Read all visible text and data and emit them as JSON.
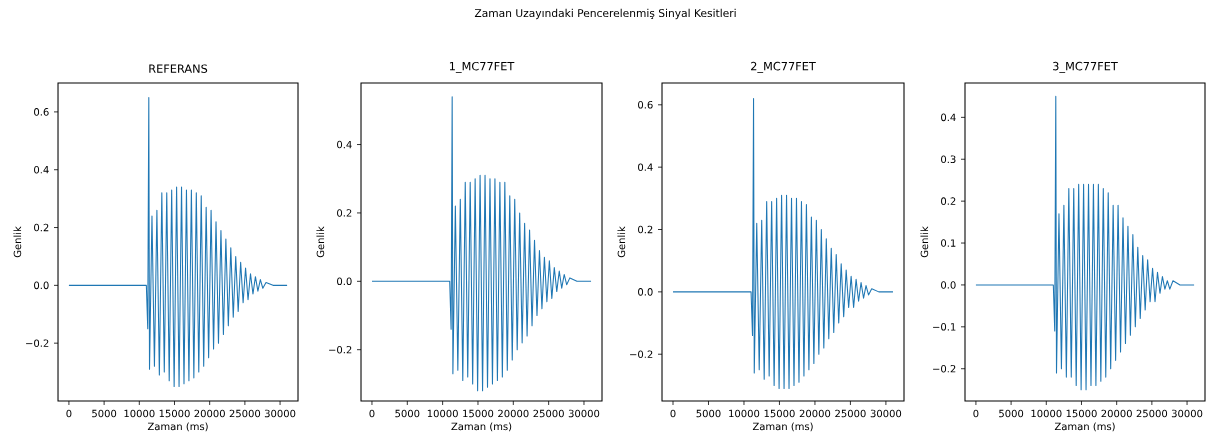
{
  "chart_data": [
    {
      "type": "line",
      "title": "REFERANS",
      "xlabel": "Zaman (ms)",
      "ylabel": "Genlik",
      "annotations": [
        "Zaman Uzayındaki Pencerelenmiş Sinyal Kesitleri"
      ],
      "color": "#1f77b4",
      "x": [
        0,
        11000,
        11200,
        11350,
        11450,
        11800,
        12150,
        12500,
        12850,
        13200,
        13550,
        13900,
        14250,
        14600,
        14950,
        15300,
        15650,
        16000,
        16350,
        16700,
        17050,
        17400,
        17750,
        18100,
        18450,
        18800,
        19150,
        19500,
        19850,
        20200,
        20550,
        20900,
        21250,
        21600,
        21950,
        22300,
        22650,
        23000,
        23350,
        23700,
        24050,
        24400,
        24750,
        25100,
        25450,
        25800,
        26150,
        26500,
        26850,
        27200,
        27550,
        28000,
        29000,
        31000
      ],
      "values": [
        0,
        0,
        -0.15,
        0.65,
        -0.29,
        0.24,
        -0.28,
        0.26,
        -0.31,
        0.32,
        -0.3,
        0.32,
        -0.33,
        0.33,
        -0.35,
        0.34,
        -0.35,
        0.34,
        -0.34,
        0.33,
        -0.33,
        0.33,
        -0.32,
        0.32,
        -0.3,
        0.31,
        -0.28,
        0.27,
        -0.25,
        0.26,
        -0.22,
        0.22,
        -0.2,
        0.19,
        -0.17,
        0.16,
        -0.14,
        0.13,
        -0.11,
        0.1,
        -0.09,
        0.08,
        -0.06,
        0.06,
        -0.05,
        0.04,
        -0.03,
        0.03,
        -0.02,
        0.02,
        -0.01,
        0.01,
        0,
        0
      ],
      "xlim": [
        -1550,
        32550
      ],
      "ylim": [
        -0.4,
        0.7
      ],
      "xticks": [
        0,
        5000,
        10000,
        15000,
        20000,
        25000,
        30000
      ],
      "yticks": [
        {
          "value": -0.2,
          "label": "−0.2"
        },
        {
          "value": 0,
          "label": "0.0"
        },
        0.2,
        0.4,
        0.6
      ]
    },
    {
      "type": "line",
      "title": "1_MC77FET",
      "xlabel": "Zaman (ms)",
      "ylabel": "Genlik",
      "color": "#1f77b4",
      "x": [
        0,
        11000,
        11200,
        11350,
        11450,
        11800,
        12150,
        12500,
        12850,
        13200,
        13550,
        13900,
        14250,
        14600,
        14950,
        15300,
        15650,
        16000,
        16350,
        16700,
        17050,
        17400,
        17750,
        18100,
        18450,
        18800,
        19150,
        19500,
        19850,
        20200,
        20550,
        20900,
        21250,
        21600,
        21950,
        22300,
        22650,
        23000,
        23350,
        23700,
        24050,
        24400,
        24750,
        25100,
        25450,
        25800,
        26150,
        26500,
        26850,
        27200,
        27550,
        28000,
        29000,
        31000
      ],
      "values": [
        0,
        0,
        -0.14,
        0.54,
        -0.27,
        0.22,
        -0.26,
        0.24,
        -0.29,
        0.29,
        -0.28,
        0.29,
        -0.3,
        0.3,
        -0.32,
        0.31,
        -0.32,
        0.31,
        -0.31,
        0.3,
        -0.3,
        0.3,
        -0.29,
        0.29,
        -0.28,
        0.29,
        -0.26,
        0.25,
        -0.23,
        0.24,
        -0.2,
        0.2,
        -0.18,
        0.17,
        -0.16,
        0.15,
        -0.13,
        0.12,
        -0.1,
        0.09,
        -0.08,
        0.07,
        -0.06,
        0.06,
        -0.05,
        0.04,
        -0.03,
        0.03,
        -0.02,
        0.02,
        -0.01,
        0.01,
        0,
        0
      ],
      "xlim": [
        -1550,
        32550
      ],
      "ylim": [
        -0.35,
        0.58
      ],
      "xticks": [
        0,
        5000,
        10000,
        15000,
        20000,
        25000,
        30000
      ],
      "yticks": [
        {
          "value": -0.2,
          "label": "−0.2"
        },
        {
          "value": 0,
          "label": "0.0"
        },
        0.2,
        0.4
      ]
    },
    {
      "type": "line",
      "title": "2_MC77FET",
      "xlabel": "Zaman (ms)",
      "ylabel": "Genlik",
      "color": "#1f77b4",
      "x": [
        0,
        11000,
        11200,
        11350,
        11450,
        11800,
        12150,
        12500,
        12850,
        13200,
        13550,
        13900,
        14250,
        14600,
        14950,
        15300,
        15650,
        16000,
        16350,
        16700,
        17050,
        17400,
        17750,
        18100,
        18450,
        18800,
        19150,
        19500,
        19850,
        20200,
        20550,
        20900,
        21250,
        21600,
        21950,
        22300,
        22650,
        23000,
        23350,
        23700,
        24050,
        24400,
        24750,
        25100,
        25450,
        25800,
        26150,
        26500,
        26850,
        27200,
        27550,
        28000,
        29000,
        31000
      ],
      "values": [
        0,
        0,
        -0.14,
        0.62,
        -0.26,
        0.22,
        -0.25,
        0.23,
        -0.28,
        0.29,
        -0.27,
        0.29,
        -0.3,
        0.3,
        -0.31,
        0.31,
        -0.31,
        0.31,
        -0.31,
        0.3,
        -0.3,
        0.3,
        -0.29,
        0.29,
        -0.27,
        0.28,
        -0.25,
        0.24,
        -0.23,
        0.23,
        -0.2,
        0.2,
        -0.18,
        0.17,
        -0.15,
        0.14,
        -0.13,
        0.12,
        -0.1,
        0.09,
        -0.08,
        0.07,
        -0.05,
        0.05,
        -0.05,
        0.04,
        -0.03,
        0.03,
        -0.02,
        0.02,
        -0.01,
        0.01,
        0,
        0
      ],
      "xlim": [
        -1550,
        32550
      ],
      "ylim": [
        -0.35,
        0.67
      ],
      "xticks": [
        0,
        5000,
        10000,
        15000,
        20000,
        25000,
        30000
      ],
      "yticks": [
        {
          "value": -0.2,
          "label": "−0.2"
        },
        {
          "value": 0,
          "label": "0.0"
        },
        0.2,
        0.4,
        0.6
      ]
    },
    {
      "type": "line",
      "title": "3_MC77FET",
      "xlabel": "Zaman (ms)",
      "ylabel": "Genlik",
      "color": "#1f77b4",
      "x": [
        0,
        11000,
        11200,
        11350,
        11450,
        11800,
        12150,
        12500,
        12850,
        13200,
        13550,
        13900,
        14250,
        14600,
        14950,
        15300,
        15650,
        16000,
        16350,
        16700,
        17050,
        17400,
        17750,
        18100,
        18450,
        18800,
        19150,
        19500,
        19850,
        20200,
        20550,
        20900,
        21250,
        21600,
        21950,
        22300,
        22650,
        23000,
        23350,
        23700,
        24050,
        24400,
        24750,
        25100,
        25450,
        25800,
        26150,
        26500,
        26850,
        27200,
        27550,
        28000,
        29000,
        31000
      ],
      "values": [
        0,
        0,
        -0.11,
        0.45,
        -0.21,
        0.17,
        -0.2,
        0.19,
        -0.22,
        0.23,
        -0.22,
        0.23,
        -0.24,
        0.24,
        -0.25,
        0.24,
        -0.25,
        0.24,
        -0.24,
        0.24,
        -0.24,
        0.24,
        -0.23,
        0.23,
        -0.22,
        0.22,
        -0.2,
        0.19,
        -0.18,
        0.19,
        -0.16,
        0.16,
        -0.14,
        0.14,
        -0.12,
        0.12,
        -0.1,
        0.09,
        -0.08,
        0.07,
        -0.06,
        0.06,
        -0.04,
        0.04,
        -0.04,
        0.03,
        -0.02,
        0.02,
        -0.01,
        0.01,
        -0.01,
        0.01,
        0,
        0
      ],
      "xlim": [
        -1550,
        32550
      ],
      "ylim": [
        -0.277,
        0.482
      ],
      "xticks": [
        0,
        5000,
        10000,
        15000,
        20000,
        25000,
        30000
      ],
      "yticks": [
        {
          "value": -0.2,
          "label": "−0.2"
        },
        {
          "value": -0.1,
          "label": "−0.1"
        },
        {
          "value": 0,
          "label": "0.0"
        },
        0.1,
        0.2,
        0.3,
        0.4
      ]
    }
  ]
}
